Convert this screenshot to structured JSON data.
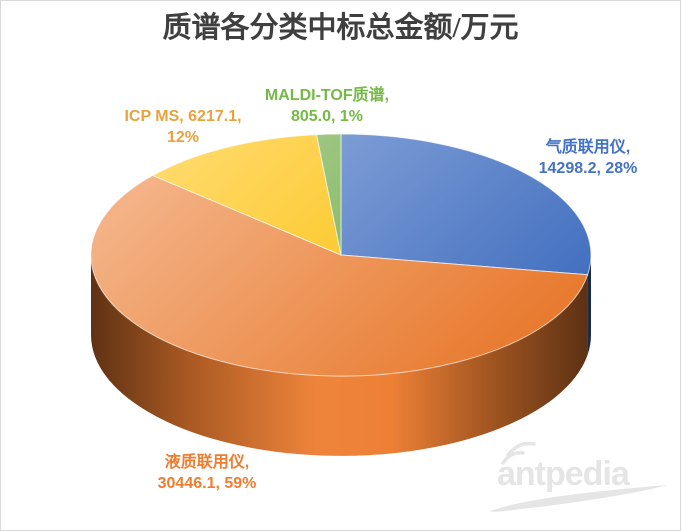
{
  "frame": {
    "background": "#FFFFFF",
    "border_color": "#D9D9D9"
  },
  "title": {
    "text": "质谱各分类中标总金额/万元",
    "color": "#3F3F3F"
  },
  "chart_data": {
    "type": "pie",
    "variant": "3d",
    "title": "质谱各分类中标总金额/万元",
    "unit": "万元",
    "start_angle_deg": 0,
    "direction": "clockwise",
    "legend_position": "none",
    "grid": false,
    "slices": [
      {
        "id": "gcms",
        "label": "气质联用仪",
        "value": 14298.2,
        "percent": "28%",
        "color": "#4472C4"
      },
      {
        "id": "lcms",
        "label": "液质联用仪",
        "value": 30446.1,
        "percent": "59%",
        "color": "#ED7D31"
      },
      {
        "id": "icpms",
        "label": "ICP MS",
        "value": 6217.1,
        "percent": "12%",
        "color": "#FFC000"
      },
      {
        "id": "malditof",
        "label": "MALDI-TOF质谱",
        "value": 805.0,
        "percent": "1%",
        "color": "#70AD47"
      }
    ]
  },
  "data_labels": {
    "gcms": {
      "line1": "气质联用仪,",
      "line2": "14298.2, 28%",
      "color": "#4472C4"
    },
    "lcms": {
      "line1": "液质联用仪,",
      "line2": "30446.1, 59%",
      "color": "#ED7D31"
    },
    "icpms": {
      "line1": "ICP MS, 6217.1,",
      "line2": "12%",
      "color": "#E8A33D"
    },
    "malditof": {
      "line1": "MALDI-TOF质谱,",
      "line2": "805.0, 1%",
      "color": "#76B947"
    }
  },
  "watermark": {
    "text": "antpedia",
    "color": "#E5E5E5"
  }
}
